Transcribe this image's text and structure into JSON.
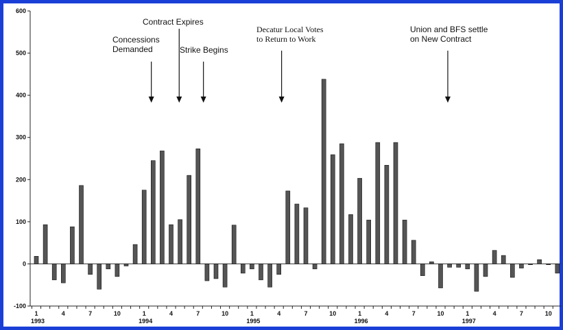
{
  "chart_data": {
    "type": "bar",
    "title": "",
    "xlabel": "",
    "ylabel": "",
    "ylim": [
      -100,
      600
    ],
    "yticks": [
      -100,
      0,
      100,
      200,
      300,
      400,
      500,
      600
    ],
    "grid": false,
    "legend": "none",
    "x_tick_labels": [
      "1",
      "4",
      "7",
      "10",
      "1",
      "4",
      "7",
      "10",
      "1",
      "4",
      "7",
      "10",
      "1",
      "4",
      "7",
      "10",
      "1",
      "4",
      "7",
      "10"
    ],
    "year_labels": [
      "1993",
      "1994",
      "1995",
      "1996",
      "1997"
    ],
    "values": [
      18,
      93,
      -38,
      -45,
      88,
      186,
      -25,
      -60,
      -12,
      -30,
      -5,
      46,
      175,
      245,
      268,
      93,
      105,
      210,
      273,
      -40,
      -35,
      -55,
      92,
      -22,
      -12,
      -38,
      -55,
      -25,
      173,
      142,
      133,
      -12,
      438,
      259,
      285,
      117,
      203,
      104,
      288,
      234,
      288,
      104,
      56,
      -28,
      5,
      -57,
      -8,
      -8,
      -12,
      -65,
      -30,
      32,
      20,
      -32,
      -10,
      -2,
      10,
      -2,
      -22
    ],
    "bar_color": "#555555",
    "annotations": [
      {
        "lines": [
          "Concessions",
          "Demanded"
        ],
        "x_index": 12.8
      },
      {
        "lines": [
          "Contract Expires"
        ],
        "x_index": 15.9
      },
      {
        "lines": [
          "Strike Begins"
        ],
        "x_index": 18.6
      },
      {
        "lines": [
          "Decatur Local Votes",
          "to Return to Work"
        ],
        "x_index": 27.3
      },
      {
        "lines": [
          "Union and BFS settle",
          "on New Contract"
        ],
        "x_index": 45.8
      }
    ]
  }
}
